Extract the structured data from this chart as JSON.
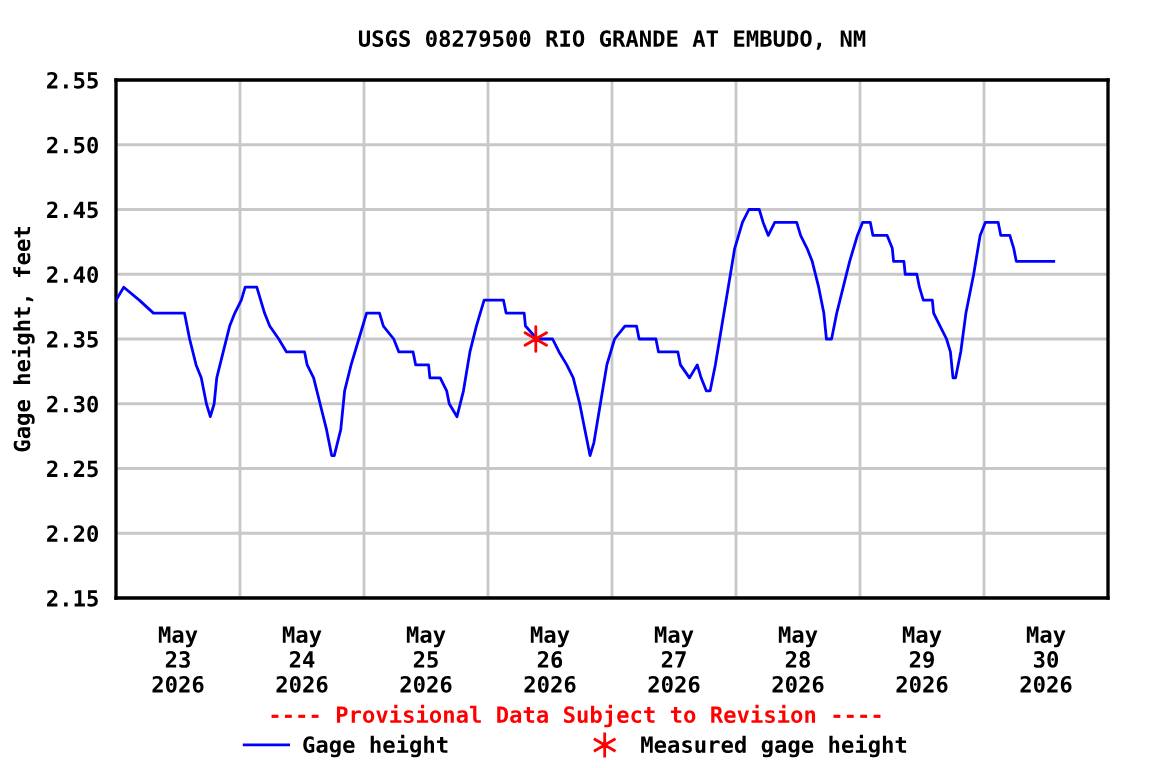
{
  "chart_data": {
    "type": "line",
    "title": "USGS 08279500 RIO GRANDE AT EMBUDO, NM",
    "ylabel": "Gage height, feet",
    "xlim": [
      "2026-05-23T00:00",
      "2026-05-31T00:00"
    ],
    "xticks": [
      {
        "value": "2026-05-23T12:00",
        "label": "May\n23\n2026"
      },
      {
        "value": "2026-05-24T12:00",
        "label": "May\n24\n2026"
      },
      {
        "value": "2026-05-25T12:00",
        "label": "May\n25\n2026"
      },
      {
        "value": "2026-05-26T12:00",
        "label": "May\n26\n2026"
      },
      {
        "value": "2026-05-27T12:00",
        "label": "May\n27\n2026"
      },
      {
        "value": "2026-05-28T12:00",
        "label": "May\n28\n2026"
      },
      {
        "value": "2026-05-29T12:00",
        "label": "May\n29\n2026"
      },
      {
        "value": "2026-05-30T12:00",
        "label": "May\n30\n2026"
      },
      {
        "value": "2026-05-24T00:00",
        "label": null
      },
      {
        "value": "2026-05-25T00:00",
        "label": null
      },
      {
        "value": "2026-05-26T00:00",
        "label": null
      },
      {
        "value": "2026-05-27T00:00",
        "label": null
      },
      {
        "value": "2026-05-28T00:00",
        "label": null
      },
      {
        "value": "2026-05-29T00:00",
        "label": null
      },
      {
        "value": "2026-05-30T00:00",
        "label": null
      }
    ],
    "ylim": [
      2.15,
      2.55
    ],
    "yticks": [
      {
        "value": 2.15,
        "label": "2.15"
      },
      {
        "value": 2.2,
        "label": "2.20"
      },
      {
        "value": 2.25,
        "label": "2.25"
      },
      {
        "value": 2.3,
        "label": "2.30"
      },
      {
        "value": 2.35,
        "label": "2.35"
      },
      {
        "value": 2.4,
        "label": "2.40"
      },
      {
        "value": 2.45,
        "label": "2.45"
      },
      {
        "value": 2.5,
        "label": "2.50"
      },
      {
        "value": 2.55,
        "label": "2.55"
      }
    ],
    "grid": true,
    "legend": "bottom",
    "annotations": [
      "---- Provisional Data Subject to Revision ----"
    ],
    "series": [
      {
        "name": "Gage height",
        "color": "#0000ff",
        "marker": "none",
        "line_style": "solid",
        "x": [
          "2026-05-23T00:00",
          "2026-05-23T01:30",
          "2026-05-23T04:30",
          "2026-05-23T07:15",
          "2026-05-23T13:15",
          "2026-05-23T14:15",
          "2026-05-23T15:30",
          "2026-05-23T16:30",
          "2026-05-23T17:30",
          "2026-05-23T18:15",
          "2026-05-23T19:00",
          "2026-05-23T19:30",
          "2026-05-23T20:45",
          "2026-05-23T22:00",
          "2026-05-23T23:00",
          "2026-05-24T00:15",
          "2026-05-24T01:00",
          "2026-05-24T03:15",
          "2026-05-24T04:00",
          "2026-05-24T04:45",
          "2026-05-24T05:45",
          "2026-05-24T07:30",
          "2026-05-24T09:00",
          "2026-05-24T12:30",
          "2026-05-24T13:00",
          "2026-05-24T14:15",
          "2026-05-24T15:30",
          "2026-05-24T16:45",
          "2026-05-24T17:45",
          "2026-05-24T18:15",
          "2026-05-24T19:30",
          "2026-05-24T20:15",
          "2026-05-24T21:30",
          "2026-05-24T23:00",
          "2026-05-25T00:30",
          "2026-05-25T03:00",
          "2026-05-25T03:45",
          "2026-05-25T05:45",
          "2026-05-25T06:45",
          "2026-05-25T09:30",
          "2026-05-25T10:00",
          "2026-05-25T12:30",
          "2026-05-25T12:45",
          "2026-05-25T14:45",
          "2026-05-25T16:00",
          "2026-05-25T16:30",
          "2026-05-25T18:00",
          "2026-05-25T19:15",
          "2026-05-25T20:30",
          "2026-05-25T21:45",
          "2026-05-25T23:15",
          "2026-05-26T03:00",
          "2026-05-26T03:30",
          "2026-05-26T07:00",
          "2026-05-26T07:15",
          "2026-05-26T09:30",
          "2026-05-26T12:30",
          "2026-05-26T13:45",
          "2026-05-26T15:15",
          "2026-05-26T16:30",
          "2026-05-26T17:45",
          "2026-05-26T18:45",
          "2026-05-26T19:45",
          "2026-05-26T20:30",
          "2026-05-26T21:45",
          "2026-05-26T23:00",
          "2026-05-27T00:30",
          "2026-05-27T02:30",
          "2026-05-27T04:45",
          "2026-05-27T05:15",
          "2026-05-27T08:30",
          "2026-05-27T09:00",
          "2026-05-27T12:45",
          "2026-05-27T13:15",
          "2026-05-27T15:00",
          "2026-05-27T16:30",
          "2026-05-27T17:15",
          "2026-05-27T18:15",
          "2026-05-27T19:00",
          "2026-05-27T20:00",
          "2026-05-27T21:15",
          "2026-05-27T22:30",
          "2026-05-27T23:45",
          "2026-05-28T01:15",
          "2026-05-28T02:30",
          "2026-05-28T04:30",
          "2026-05-28T05:15",
          "2026-05-28T06:15",
          "2026-05-28T07:30",
          "2026-05-28T11:45",
          "2026-05-28T12:30",
          "2026-05-28T13:45",
          "2026-05-28T14:45",
          "2026-05-28T16:00",
          "2026-05-28T17:00",
          "2026-05-28T17:30",
          "2026-05-28T18:30",
          "2026-05-28T19:30",
          "2026-05-28T20:45",
          "2026-05-28T22:00",
          "2026-05-28T23:30",
          "2026-05-29T00:30",
          "2026-05-29T02:00",
          "2026-05-29T02:30",
          "2026-05-29T05:15",
          "2026-05-29T06:15",
          "2026-05-29T06:30",
          "2026-05-29T08:30",
          "2026-05-29T08:45",
          "2026-05-29T11:00",
          "2026-05-29T11:30",
          "2026-05-29T12:15",
          "2026-05-29T14:00",
          "2026-05-29T14:15",
          "2026-05-29T15:30",
          "2026-05-29T16:45",
          "2026-05-29T17:30",
          "2026-05-29T18:00",
          "2026-05-29T18:30",
          "2026-05-29T19:30",
          "2026-05-29T20:30",
          "2026-05-29T22:00",
          "2026-05-29T23:15",
          "2026-05-30T00:15",
          "2026-05-30T02:45",
          "2026-05-30T03:15",
          "2026-05-30T05:00",
          "2026-05-30T05:45",
          "2026-05-30T06:15",
          "2026-05-30T13:30"
        ],
        "values": [
          2.38,
          2.39,
          2.38,
          2.37,
          2.37,
          2.35,
          2.33,
          2.32,
          2.3,
          2.29,
          2.3,
          2.32,
          2.34,
          2.36,
          2.37,
          2.38,
          2.39,
          2.39,
          2.38,
          2.37,
          2.36,
          2.35,
          2.34,
          2.34,
          2.33,
          2.32,
          2.3,
          2.28,
          2.26,
          2.26,
          2.28,
          2.31,
          2.33,
          2.35,
          2.37,
          2.37,
          2.36,
          2.35,
          2.34,
          2.34,
          2.33,
          2.33,
          2.32,
          2.32,
          2.31,
          2.3,
          2.29,
          2.31,
          2.34,
          2.36,
          2.38,
          2.38,
          2.37,
          2.37,
          2.36,
          2.35,
          2.35,
          2.34,
          2.33,
          2.32,
          2.3,
          2.28,
          2.26,
          2.27,
          2.3,
          2.33,
          2.35,
          2.36,
          2.36,
          2.35,
          2.35,
          2.34,
          2.34,
          2.33,
          2.32,
          2.33,
          2.32,
          2.31,
          2.31,
          2.33,
          2.36,
          2.39,
          2.42,
          2.44,
          2.45,
          2.45,
          2.44,
          2.43,
          2.44,
          2.44,
          2.43,
          2.42,
          2.41,
          2.39,
          2.37,
          2.35,
          2.35,
          2.37,
          2.39,
          2.41,
          2.43,
          2.44,
          2.44,
          2.43,
          2.43,
          2.42,
          2.41,
          2.41,
          2.4,
          2.4,
          2.39,
          2.38,
          2.38,
          2.37,
          2.36,
          2.35,
          2.34,
          2.32,
          2.32,
          2.34,
          2.37,
          2.4,
          2.43,
          2.44,
          2.44,
          2.43,
          2.43,
          2.42,
          2.41,
          2.41
        ]
      },
      {
        "name": "Measured gage height",
        "type": "scatter",
        "color": "#ff0000",
        "marker": "cross",
        "x": [
          "2026-05-26T09:15"
        ],
        "values": [
          2.35
        ]
      }
    ]
  }
}
